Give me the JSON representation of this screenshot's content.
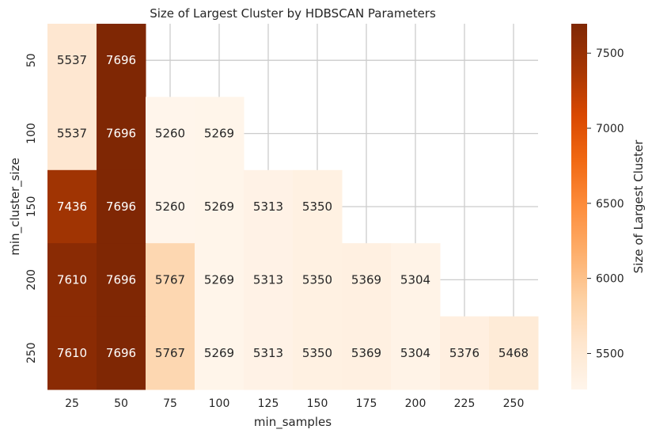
{
  "chart_data": {
    "type": "heatmap",
    "title": "Size of Largest Cluster by HDBSCAN Parameters",
    "xlabel": "min_samples",
    "ylabel": "min_cluster_size",
    "x_categories": [
      "25",
      "50",
      "75",
      "100",
      "125",
      "150",
      "175",
      "200",
      "225",
      "250"
    ],
    "y_categories": [
      "50",
      "100",
      "150",
      "200",
      "250"
    ],
    "values": [
      [
        5537,
        7696,
        null,
        null,
        null,
        null,
        null,
        null,
        null,
        null
      ],
      [
        5537,
        7696,
        5260,
        5269,
        null,
        null,
        null,
        null,
        null,
        null
      ],
      [
        7436,
        7696,
        5260,
        5269,
        5313,
        5350,
        null,
        null,
        null,
        null
      ],
      [
        7610,
        7696,
        5767,
        5269,
        5313,
        5350,
        5369,
        5304,
        null,
        null
      ],
      [
        7610,
        7696,
        5767,
        5269,
        5313,
        5350,
        5369,
        5304,
        5376,
        5468
      ]
    ],
    "colorbar": {
      "label": "Size of Largest Cluster",
      "ticks": [
        5500,
        6000,
        6500,
        7000,
        7500
      ],
      "range": [
        5260,
        7696
      ],
      "colormap": "Oranges"
    },
    "grid": true,
    "colors": {
      "low": "#fff5eb",
      "mid": "#fd8d3c",
      "high": "#7f2704",
      "grid": "#cccccc",
      "text_dark": "#262626",
      "text_light": "#ffffff"
    }
  }
}
